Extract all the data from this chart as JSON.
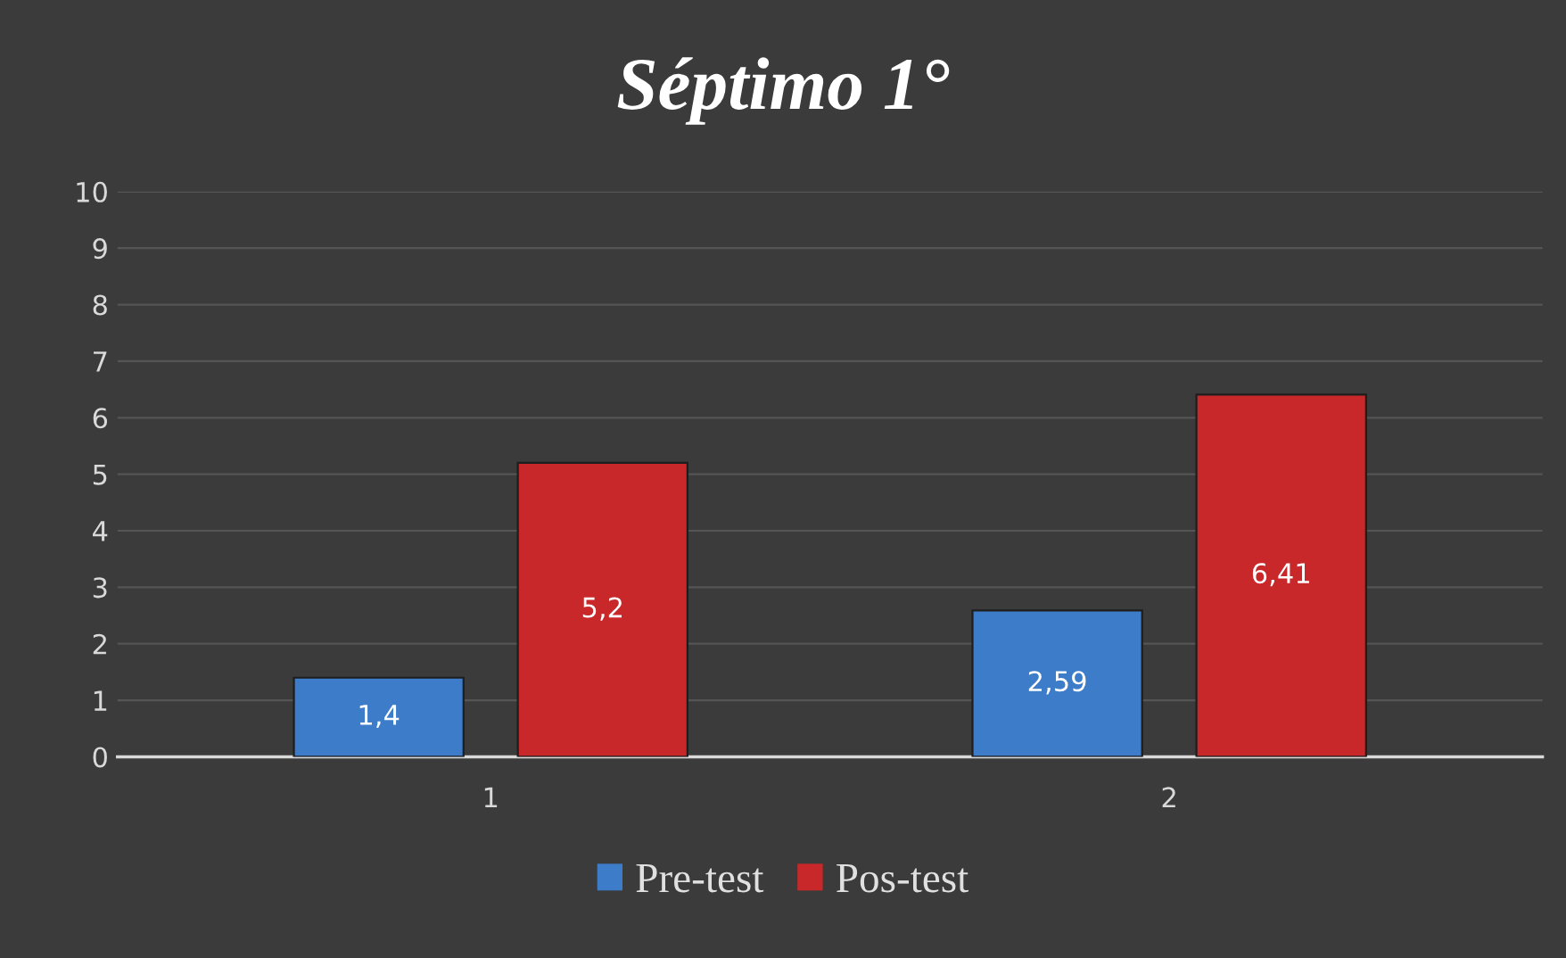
{
  "chart_data": {
    "type": "bar",
    "title": "Séptimo 1°",
    "categories": [
      "1",
      "2"
    ],
    "series": [
      {
        "name": "Pre-test",
        "color": "#3d7cc9",
        "values": [
          1.4,
          2.59
        ],
        "value_labels": [
          "1,4",
          "2,59"
        ]
      },
      {
        "name": "Pos-test",
        "color": "#c8282a",
        "values": [
          5.2,
          6.41
        ],
        "value_labels": [
          "5,2",
          "6,41"
        ]
      }
    ],
    "ylim": [
      0,
      10
    ],
    "yticks": [
      0,
      1,
      2,
      3,
      4,
      5,
      6,
      7,
      8,
      9,
      10
    ],
    "grid": "y",
    "legend": "bottom"
  }
}
